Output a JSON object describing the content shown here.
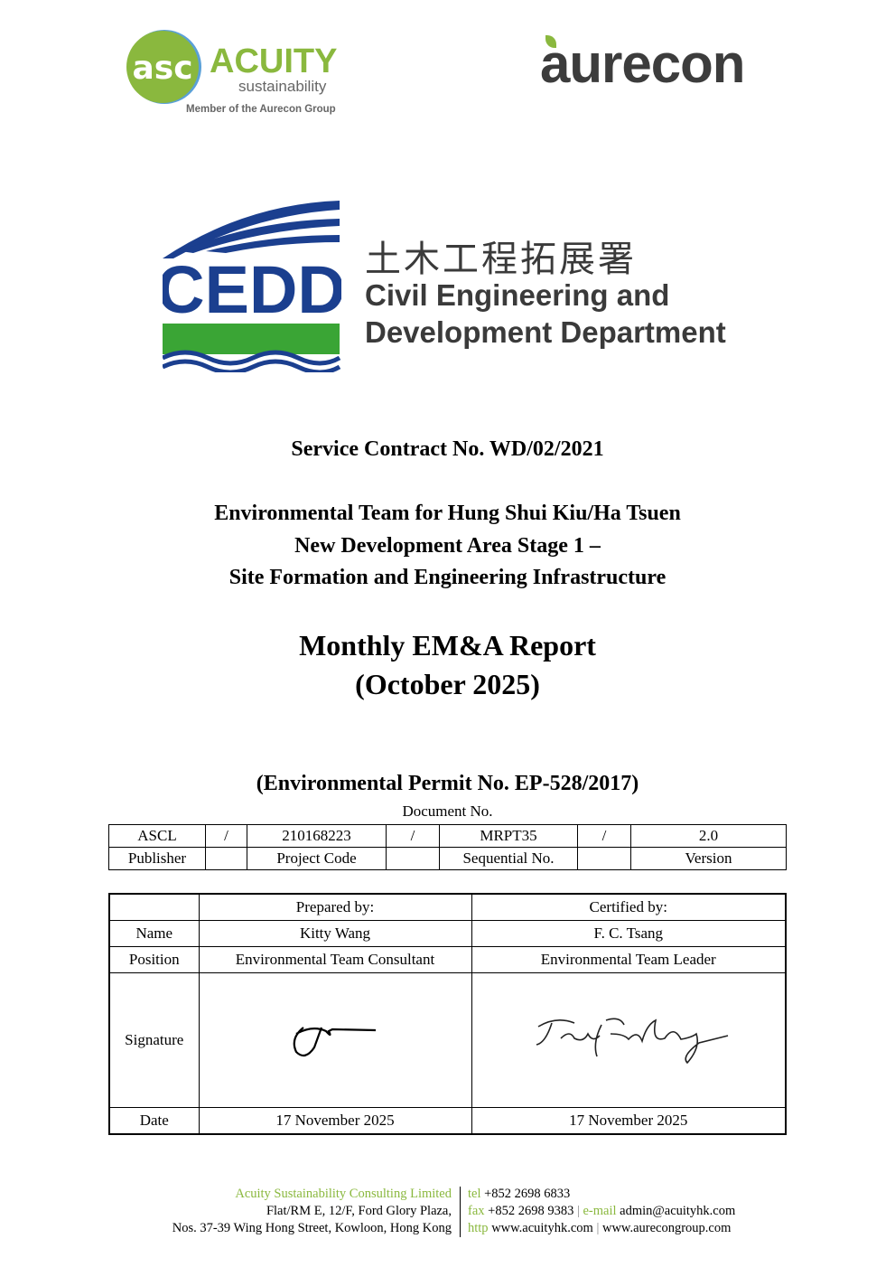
{
  "logos": {
    "acuity": {
      "monogram": "asc",
      "name": "ACUITY",
      "sub": "sustainability",
      "tagline": "Member of the Aurecon Group",
      "color": "#8ab83e"
    },
    "aurecon": {
      "name": "aurecon",
      "color": "#3c3c3c",
      "leaf_color": "#8ab83e"
    },
    "cedd": {
      "abbr": "CEDD",
      "chinese": "土木工程拓展署",
      "line1": "Civil Engineering and",
      "line2": "Development Department",
      "blue": "#1b3f8f",
      "green": "#3aa535"
    }
  },
  "contract": "Service Contract No. WD/02/2021",
  "project_title": [
    "Environmental Team for Hung Shui Kiu/Ha Tsuen",
    "New Development Area Stage 1 –",
    "Site Formation and Engineering Infrastructure"
  ],
  "report_title": "Monthly EM&A Report",
  "report_period": "(October 2025)",
  "permit": "(Environmental Permit No. EP-528/2017)",
  "document_no": {
    "label": "Document No.",
    "values": [
      "ASCL",
      "/",
      "210168223",
      "/",
      "MRPT35",
      "/",
      "2.0"
    ],
    "labels": [
      "Publisher",
      "",
      "Project Code",
      "",
      "Sequential No.",
      "",
      "Version"
    ]
  },
  "approval": {
    "headers": [
      "",
      "Prepared by:",
      "Certified by:"
    ],
    "rows": {
      "name": [
        "Name",
        "Kitty Wang",
        "F. C. Tsang"
      ],
      "position": [
        "Position",
        "Environmental Team Consultant",
        "Environmental Team Leader"
      ],
      "signature": [
        "Signature"
      ],
      "date": [
        "Date",
        "17 November 2025",
        "17 November 2025"
      ]
    }
  },
  "footer": {
    "company": "Acuity Sustainability Consulting Limited",
    "address1": "Flat/RM E, 12/F, Ford Glory Plaza,",
    "address2": "Nos. 37-39 Wing Hong Street, Kowloon, Hong Kong",
    "tel_label": "tel",
    "tel": "+852 2698 6833",
    "fax_label": "fax",
    "fax": "+852 2698 9383",
    "email_label": "e-mail",
    "email": "admin@acuityhk.com",
    "http_label": "http",
    "web1": "www.acuityhk.com",
    "web2": "www.aurecongroup.com"
  }
}
